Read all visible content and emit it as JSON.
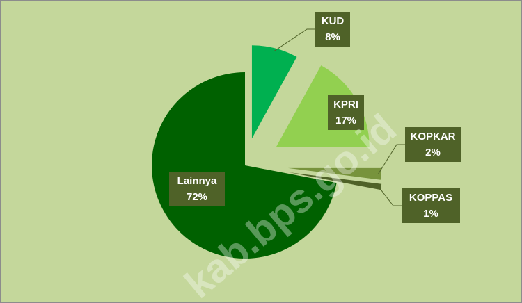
{
  "chart_data": {
    "type": "pie",
    "categories": [
      "KUD",
      "KPRI",
      "KOPKAR",
      "KOPPAS",
      "Lainnya"
    ],
    "values": [
      8,
      17,
      2,
      1,
      72
    ],
    "value_labels": [
      "8%",
      "17%",
      "2%",
      "1%",
      "72%"
    ],
    "colors": [
      "#00b050",
      "#92d050",
      "#77933c",
      "#4f6228",
      "#006100"
    ],
    "watermark": "kab.bps.go.id"
  }
}
